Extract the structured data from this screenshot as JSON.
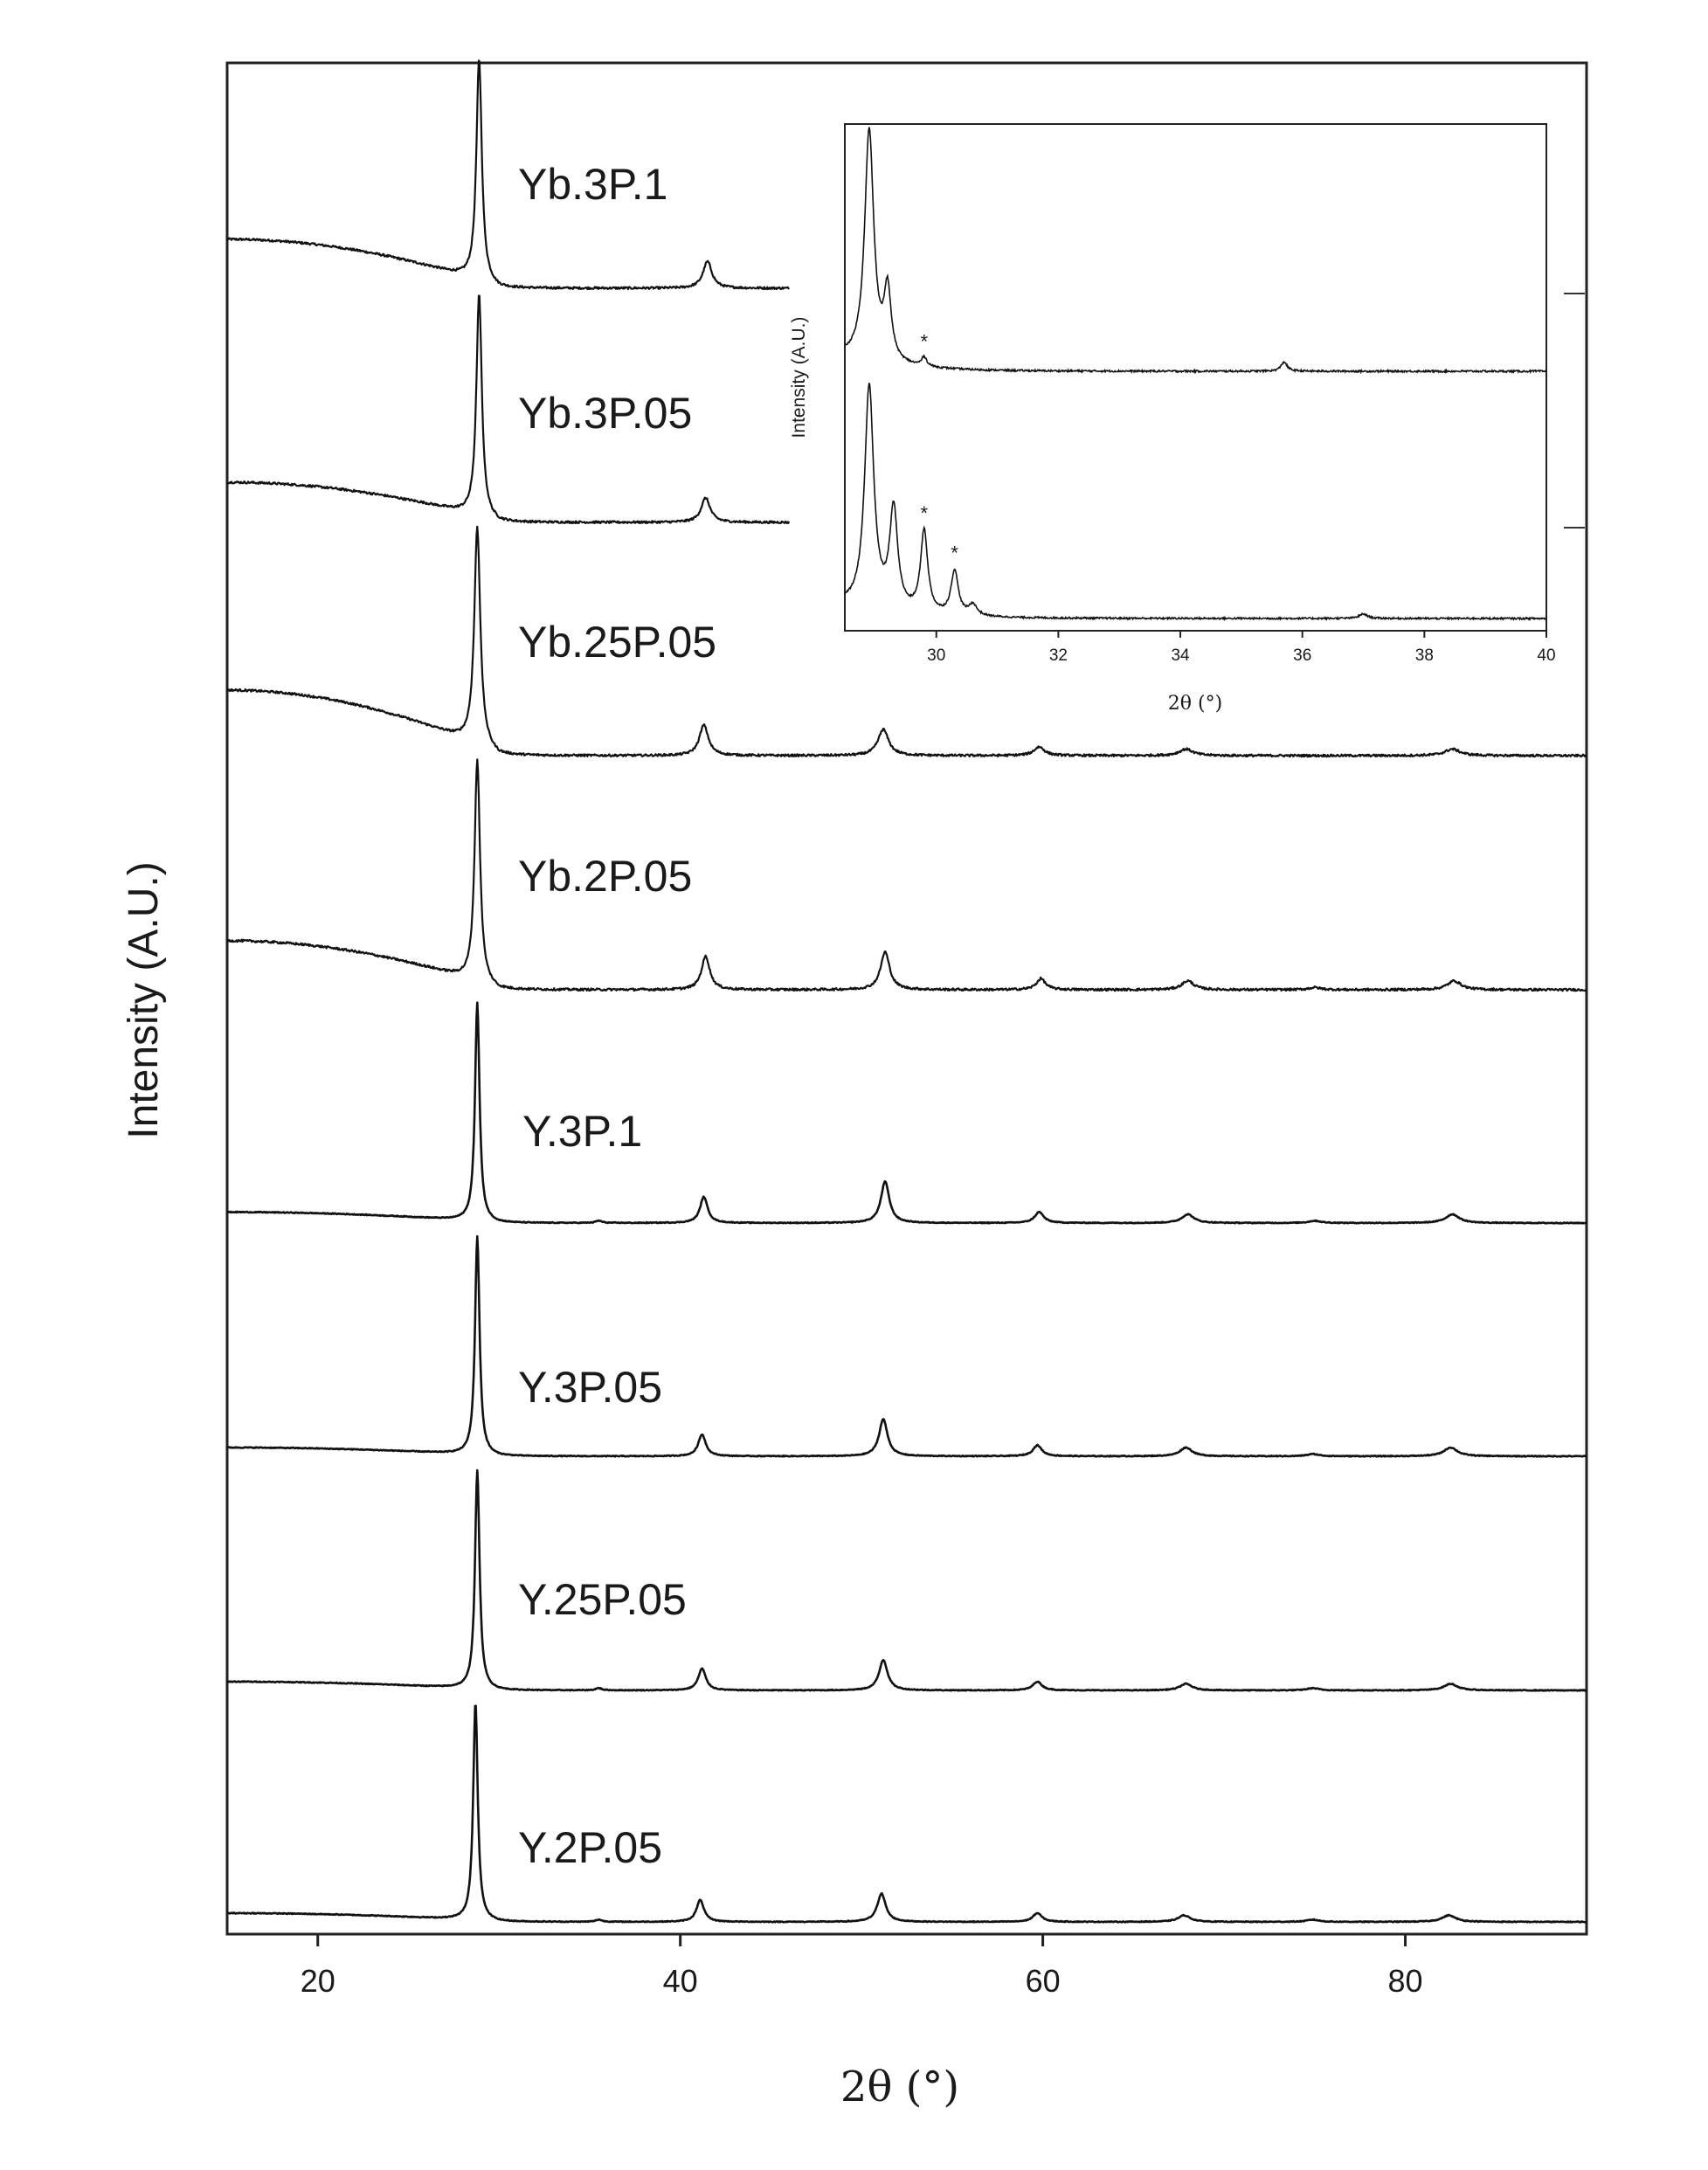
{
  "chart_data": [
    {
      "type": "line",
      "xlabel": "2θ (°)",
      "ylabel": "Intensity (A.U.)",
      "xlim": [
        15,
        90
      ],
      "x_ticks": [
        20,
        40,
        60,
        80
      ],
      "legend": "none",
      "grid": false,
      "stacked_offset": true,
      "series": [
        {
          "name": "Yb.3P.1",
          "x_range": [
            15,
            46
          ],
          "baseline": 0.0,
          "amorphous_hump": 0.35,
          "peaks": [
            {
              "x": 28.9,
              "h": 1.0,
              "w": 0.18
            },
            {
              "x": 41.5,
              "h": 0.12,
              "w": 0.3
            }
          ]
        },
        {
          "name": "Yb.3P.05",
          "x_range": [
            15,
            46
          ],
          "baseline": 0.0,
          "amorphous_hump": 0.05,
          "peaks": [
            {
              "x": 28.9,
              "h": 1.0,
              "w": 0.18
            },
            {
              "x": 41.4,
              "h": 0.11,
              "w": 0.3
            }
          ]
        },
        {
          "name": "Yb.25P.05",
          "x_range": [
            15,
            90
          ],
          "baseline": 0.0,
          "amorphous_hump": 0.38,
          "peaks": [
            {
              "x": 28.8,
              "h": 1.0,
              "w": 0.2
            },
            {
              "x": 41.3,
              "h": 0.14,
              "w": 0.3
            },
            {
              "x": 51.2,
              "h": 0.12,
              "w": 0.35
            },
            {
              "x": 59.8,
              "h": 0.04,
              "w": 0.35
            },
            {
              "x": 67.9,
              "h": 0.03,
              "w": 0.45
            },
            {
              "x": 82.6,
              "h": 0.03,
              "w": 0.5
            }
          ]
        },
        {
          "name": "Yb.2P.05",
          "x_range": [
            15,
            90
          ],
          "baseline": 0.0,
          "amorphous_hump": 0.2,
          "peaks": [
            {
              "x": 28.8,
              "h": 1.0,
              "w": 0.18
            },
            {
              "x": 41.4,
              "h": 0.15,
              "w": 0.28
            },
            {
              "x": 51.3,
              "h": 0.17,
              "w": 0.3
            },
            {
              "x": 59.9,
              "h": 0.05,
              "w": 0.3
            },
            {
              "x": 68.0,
              "h": 0.04,
              "w": 0.4
            },
            {
              "x": 75.0,
              "h": 0.01,
              "w": 0.4
            },
            {
              "x": 82.7,
              "h": 0.04,
              "w": 0.45
            }
          ]
        },
        {
          "name": "Y.3P.1",
          "x_range": [
            15,
            90
          ],
          "baseline": 0.0,
          "amorphous_hump": 0.03,
          "peaks": [
            {
              "x": 28.8,
              "h": 1.0,
              "w": 0.15
            },
            {
              "x": 35.5,
              "h": 0.01,
              "w": 0.2
            },
            {
              "x": 41.3,
              "h": 0.12,
              "w": 0.25
            },
            {
              "x": 51.3,
              "h": 0.19,
              "w": 0.28
            },
            {
              "x": 59.8,
              "h": 0.05,
              "w": 0.3
            },
            {
              "x": 68.0,
              "h": 0.04,
              "w": 0.4
            },
            {
              "x": 75.0,
              "h": 0.01,
              "w": 0.4
            },
            {
              "x": 82.6,
              "h": 0.04,
              "w": 0.45
            }
          ]
        },
        {
          "name": "Y.3P.05",
          "x_range": [
            15,
            90
          ],
          "baseline": 0.0,
          "amorphous_hump": 0.02,
          "peaks": [
            {
              "x": 28.8,
              "h": 1.0,
              "w": 0.15
            },
            {
              "x": 41.2,
              "h": 0.1,
              "w": 0.25
            },
            {
              "x": 51.2,
              "h": 0.17,
              "w": 0.28
            },
            {
              "x": 59.7,
              "h": 0.05,
              "w": 0.3
            },
            {
              "x": 67.9,
              "h": 0.04,
              "w": 0.4
            },
            {
              "x": 74.9,
              "h": 0.01,
              "w": 0.4
            },
            {
              "x": 82.5,
              "h": 0.04,
              "w": 0.45
            }
          ]
        },
        {
          "name": "Y.25P.05",
          "x_range": [
            15,
            90
          ],
          "baseline": 0.0,
          "amorphous_hump": 0.02,
          "peaks": [
            {
              "x": 28.8,
              "h": 1.0,
              "w": 0.15
            },
            {
              "x": 35.5,
              "h": 0.01,
              "w": 0.2
            },
            {
              "x": 41.2,
              "h": 0.1,
              "w": 0.25
            },
            {
              "x": 51.2,
              "h": 0.14,
              "w": 0.28
            },
            {
              "x": 59.7,
              "h": 0.04,
              "w": 0.3
            },
            {
              "x": 67.9,
              "h": 0.03,
              "w": 0.4
            },
            {
              "x": 74.9,
              "h": 0.01,
              "w": 0.4
            },
            {
              "x": 82.5,
              "h": 0.03,
              "w": 0.45
            }
          ]
        },
        {
          "name": "Y.2P.05",
          "x_range": [
            15,
            90
          ],
          "baseline": 0.0,
          "amorphous_hump": 0.02,
          "peaks": [
            {
              "x": 28.7,
              "h": 1.0,
              "w": 0.15
            },
            {
              "x": 35.5,
              "h": 0.01,
              "w": 0.2
            },
            {
              "x": 41.1,
              "h": 0.1,
              "w": 0.25
            },
            {
              "x": 51.1,
              "h": 0.13,
              "w": 0.28
            },
            {
              "x": 59.7,
              "h": 0.04,
              "w": 0.3
            },
            {
              "x": 67.8,
              "h": 0.03,
              "w": 0.4
            },
            {
              "x": 74.9,
              "h": 0.01,
              "w": 0.4
            },
            {
              "x": 82.4,
              "h": 0.03,
              "w": 0.45
            }
          ]
        }
      ]
    },
    {
      "type": "line",
      "inset": true,
      "xlabel": "2θ (°)",
      "ylabel": "Intensity (A.U.)",
      "xlim": [
        28.5,
        40
      ],
      "x_ticks": [
        30,
        32,
        34,
        36,
        38,
        40
      ],
      "legend": "none",
      "grid": false,
      "series": [
        {
          "position": "top",
          "peaks": [
            {
              "x": 28.9,
              "h": 1.0,
              "w": 0.09
            },
            {
              "x": 29.2,
              "h": 0.3,
              "w": 0.07
            },
            {
              "x": 29.8,
              "h": 0.04,
              "w": 0.05
            },
            {
              "x": 35.7,
              "h": 0.04,
              "w": 0.06
            }
          ],
          "markers": [
            {
              "x": 29.8,
              "symbol": "*"
            }
          ]
        },
        {
          "position": "bottom",
          "peaks": [
            {
              "x": 28.9,
              "h": 1.0,
              "w": 0.09
            },
            {
              "x": 29.3,
              "h": 0.45,
              "w": 0.08
            },
            {
              "x": 29.8,
              "h": 0.37,
              "w": 0.07
            },
            {
              "x": 30.3,
              "h": 0.2,
              "w": 0.07
            },
            {
              "x": 30.6,
              "h": 0.05,
              "w": 0.08
            },
            {
              "x": 37.0,
              "h": 0.02,
              "w": 0.08
            }
          ],
          "markers": [
            {
              "x": 29.8,
              "symbol": "*"
            },
            {
              "x": 30.3,
              "symbol": "*"
            }
          ]
        }
      ]
    }
  ]
}
